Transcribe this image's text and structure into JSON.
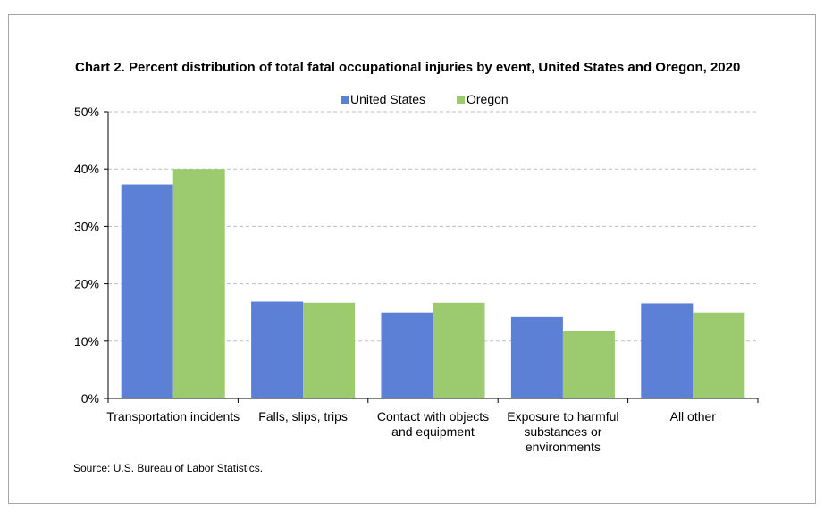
{
  "chart_data": {
    "type": "bar",
    "title": "Chart 2. Percent distribution of total fatal occupational injuries by event, United States and Oregon, 2020",
    "categories": [
      [
        "Transportation incidents"
      ],
      [
        "Falls, slips, trips"
      ],
      [
        "Contact with objects",
        "and equipment"
      ],
      [
        "Exposure to harmful",
        "substances or",
        "environments"
      ],
      [
        "All other"
      ]
    ],
    "series": [
      {
        "name": "United States",
        "color": "#5b80d6",
        "values": [
          37.3,
          16.9,
          15.0,
          14.2,
          16.6
        ]
      },
      {
        "name": "Oregon",
        "color": "#9bcb6e",
        "values": [
          40.0,
          16.7,
          16.7,
          11.7,
          15.0
        ]
      }
    ],
    "ylim": [
      0,
      50
    ],
    "yticks": [
      "0%",
      "10%",
      "20%",
      "30%",
      "40%",
      "50%"
    ],
    "grid": true,
    "legend": "top-center",
    "source": "Source: U.S. Bureau of Labor Statistics."
  }
}
